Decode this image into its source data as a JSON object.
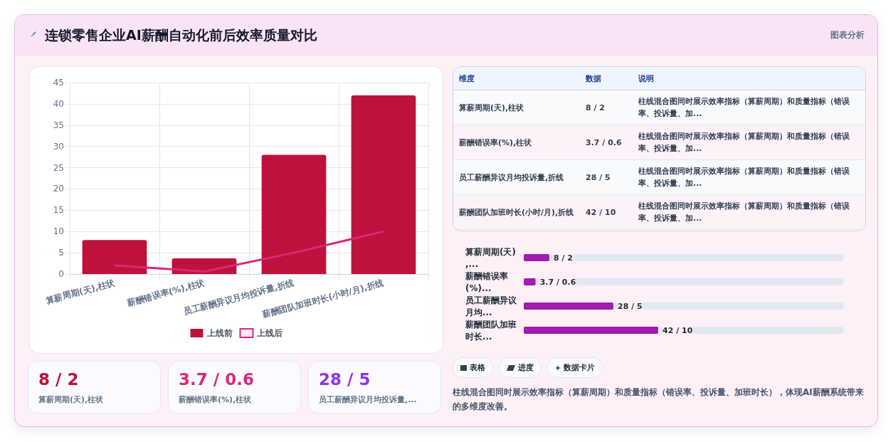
{
  "chart_data": [
    {
      "type": "bar",
      "title": "连锁零售企业AI薪酬自动化前后效率质量对比",
      "categories": [
        "算薪周期(天),柱状",
        "薪酬错误率(%),柱状",
        "员工薪酬异议月均投诉量,折线",
        "薪酬团队加班时长(小时/月),折线"
      ],
      "series": [
        {
          "name": "上线前",
          "type": "bar",
          "color": "#be123c",
          "values": [
            8,
            3.7,
            28,
            42
          ]
        },
        {
          "name": "上线后",
          "type": "line",
          "color": "#db2777",
          "marker": "none",
          "values": [
            2,
            0.6,
            5,
            10
          ]
        }
      ],
      "ylim": [
        0,
        45
      ],
      "yticks": [
        0,
        5,
        10,
        15,
        20,
        25,
        30,
        35,
        40,
        45
      ],
      "grid": true,
      "legend": "bottom",
      "annotations": [
        "图表分析",
        "表格",
        "进度",
        "数据卡片",
        "柱线混合图同时展示效率指标（算薪周期）和质量指标（错误率、投诉量、加班时长），体现AI薪酬系统带来的多维度改善。"
      ]
    },
    {
      "type": "other",
      "categories": [
        "维度",
        "数据",
        "说明"
      ],
      "cell_labels": [
        [
          "算薪周期(天),柱状",
          "8 / 2",
          "柱线混合图同时展示效率指标（算薪周期）和质量指标（错误率、投诉量、加..."
        ],
        [
          "薪酬错误率(%),柱状",
          "3.7 / 0.6",
          "柱线混合图同时展示效率指标（算薪周期）和质量指标（错误率、投诉量、加..."
        ],
        [
          "员工薪酬异议月均投诉量,折线",
          "28 / 5",
          "柱线混合图同时展示效率指标（算薪周期）和质量指标（错误率、投诉量、加..."
        ],
        [
          "薪酬团队加班时长(小时/月),折线",
          "42 / 10",
          "柱线混合图同时展示效率指标（算薪周期）和质量指标（错误率、投诉量、加..."
        ]
      ]
    },
    {
      "type": "bar",
      "orientation": "horizontal",
      "color": "#a21caf",
      "xlim": [
        0,
        100
      ],
      "tick_labels": "y",
      "categories": [
        "算薪周期(天),...",
        "薪酬错误率(%)...",
        "员工薪酬异议月均...",
        "薪酬团队加班时长..."
      ],
      "values": [
        8,
        3.7,
        28,
        42
      ],
      "value_labels": [
        "8 / 2",
        "3.7 / 0.6",
        "28 / 5",
        "42 / 10"
      ]
    },
    {
      "type": "other",
      "categories": [
        "算薪周期(天),柱状",
        "薪酬错误率(%),柱状",
        "员工薪酬异议月均投诉量,..."
      ],
      "value_labels": [
        "8 / 2",
        "3.7 / 0.6",
        "28 / 5"
      ]
    }
  ]
}
